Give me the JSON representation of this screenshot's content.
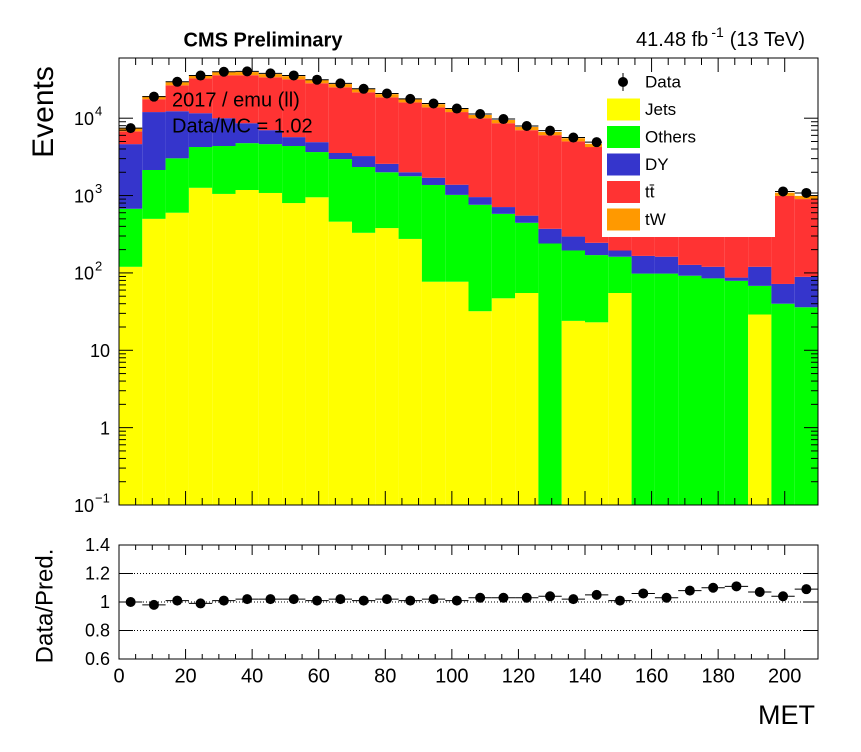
{
  "chart_data": [
    {
      "type": "stacked-histogram",
      "title": "CMS Preliminary",
      "lumi": {
        "text": "41.48 fb",
        "sup": "-1",
        "suffix": "(13 TeV)"
      },
      "annotations": [
        "2017 / emu (ll)",
        "Data/MC = 1.02"
      ],
      "ylabel": "Events",
      "log_y": true,
      "legend": "top-right",
      "bins": [
        0,
        7,
        14,
        21,
        28,
        35,
        42,
        49,
        56,
        63,
        70,
        77,
        84,
        91,
        98,
        105,
        112,
        119,
        126,
        133,
        140,
        147,
        154,
        161,
        168,
        175,
        182,
        189,
        196,
        203,
        210
      ],
      "xlim": [
        0,
        210
      ],
      "ylim": [
        0.1,
        60000
      ],
      "yticks": [
        {
          "value": 0.1,
          "label": "10",
          "sup": "−1"
        },
        1,
        10,
        {
          "value": 100,
          "label": "10",
          "sup": "2"
        },
        {
          "value": 1000,
          "label": "10",
          "sup": "3"
        },
        {
          "value": 10000,
          "label": "10",
          "sup": "4"
        }
      ],
      "data": {
        "name": "Data",
        "color": "#000000",
        "values": [
          7440,
          18970,
          29550,
          35610,
          39880,
          40280,
          37920,
          35680,
          31440,
          28160,
          24000,
          20870,
          17780,
          15480,
          13330,
          11330,
          9750,
          7930,
          6900,
          5620,
          4900,
          3940,
          3450,
          2800,
          2460,
          2090,
          1770,
          1440,
          1130,
          1080
        ]
      },
      "series": [
        {
          "name": "Jets",
          "color": "#ffff00",
          "values": [
            120,
            500,
            600,
            1260,
            1050,
            1180,
            1080,
            800,
            950,
            460,
            330,
            380,
            275,
            77,
            77,
            32,
            47,
            55,
            0,
            24,
            23,
            55,
            0,
            0,
            0,
            0,
            0,
            29,
            0,
            0
          ]
        },
        {
          "name": "Others",
          "color": "#00ff00",
          "values": [
            555,
            1640,
            2430,
            2980,
            3320,
            3580,
            3540,
            3570,
            2700,
            2500,
            2010,
            1620,
            1505,
            1293,
            943,
            728,
            533,
            390,
            240,
            171,
            147,
            107,
            98,
            98,
            92,
            85,
            79,
            39,
            40,
            36
          ]
        },
        {
          "name": "DY",
          "color": "#3535cc",
          "values": [
            3945,
            9860,
            9270,
            7360,
            5630,
            3850,
            2380,
            1320,
            1250,
            590,
            900,
            570,
            220,
            330,
            360,
            195,
            130,
            105,
            132,
            100,
            75,
            33,
            68,
            64,
            35,
            35,
            8,
            52,
            32,
            53
          ]
        },
        {
          "name": "tt̄",
          "color": "#ff3333",
          "values": [
            2140,
            5600,
            14300,
            21100,
            25900,
            27300,
            26800,
            26100,
            23400,
            21550,
            18360,
            16030,
            14000,
            12100,
            10620,
            9045,
            7900,
            6450,
            5658,
            4715,
            3995,
            3355,
            2794,
            2308,
            1943,
            1610,
            1363,
            1100,
            918,
            811
          ]
        },
        {
          "name": "tW",
          "color": "#ff9900",
          "values": [
            680,
            1760,
            2660,
            3270,
            3590,
            3590,
            3380,
            3180,
            2830,
            2510,
            2160,
            1860,
            1600,
            1380,
            1200,
            1000,
            861,
            700,
            603,
            501,
            424,
            355,
            296,
            247,
            207,
            173,
            145,
            122,
            99,
            90
          ]
        }
      ]
    },
    {
      "type": "ratio",
      "ylabel": "Data/Pred.",
      "xlabel": "MET",
      "color": "#000000",
      "values": [
        1.0,
        0.98,
        1.01,
        0.99,
        1.01,
        1.02,
        1.02,
        1.02,
        1.01,
        1.02,
        1.01,
        1.02,
        1.01,
        1.02,
        1.01,
        1.03,
        1.03,
        1.03,
        1.04,
        1.02,
        1.05,
        1.01,
        1.06,
        1.03,
        1.08,
        1.1,
        1.11,
        1.07,
        1.04,
        1.09
      ],
      "xlim": [
        0,
        210
      ],
      "xticks": [
        0,
        20,
        40,
        60,
        80,
        100,
        120,
        140,
        160,
        180,
        200
      ],
      "ylim": [
        0.6,
        1.4
      ],
      "yticks": [
        0.6,
        0.8,
        1,
        1.2,
        1.4
      ],
      "grid": true
    }
  ]
}
